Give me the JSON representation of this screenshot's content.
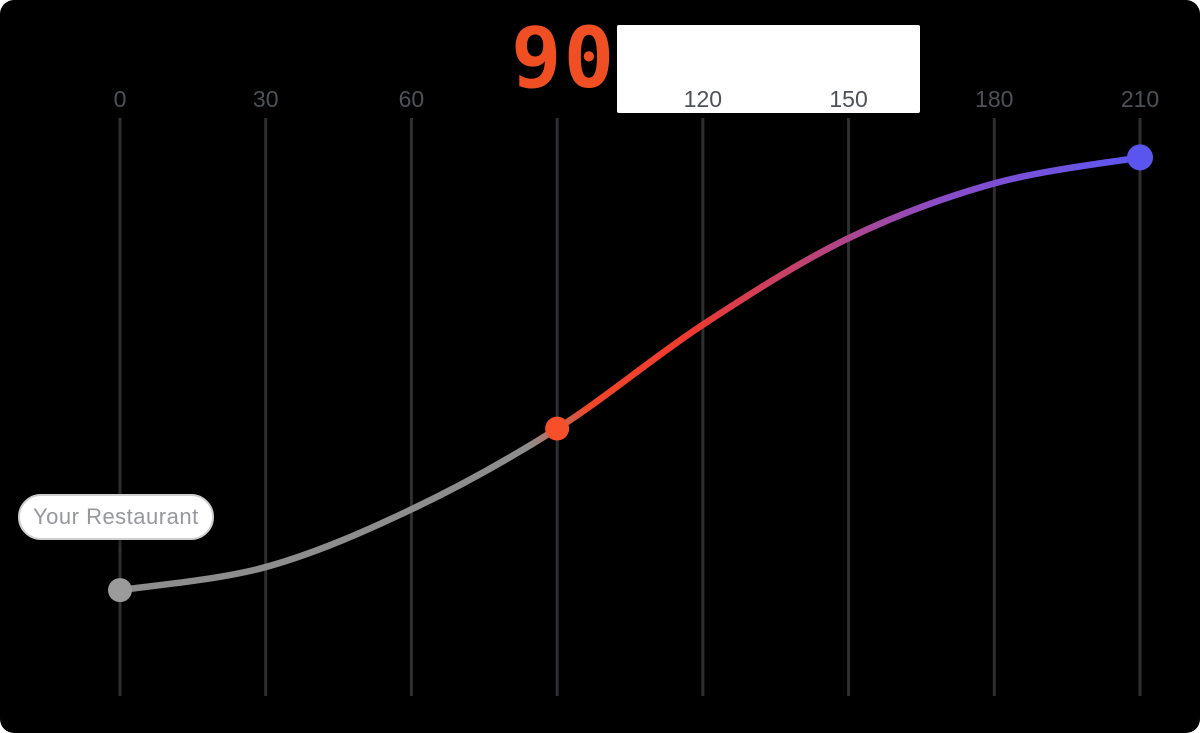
{
  "chart_data": {
    "type": "line",
    "title": "",
    "xlabel": "",
    "ylabel": "",
    "x_axis": {
      "min": 0,
      "max": 210,
      "tick_interval": 30,
      "ticks": [
        0,
        30,
        60,
        90,
        120,
        150,
        180,
        210
      ],
      "position": "top"
    },
    "ylim": [
      0,
      1
    ],
    "y_axis_labels": "none",
    "grid": {
      "vertical": true,
      "horizontal": false,
      "color": "#2e2f31"
    },
    "highlight": {
      "tick": 90,
      "value": "90",
      "color": "#F04F23"
    },
    "annotation": {
      "label": "Your Restaurant"
    },
    "series": [
      {
        "name": "restaurant-growth-curve",
        "points": [
          {
            "x": 0,
            "y": 0.18
          },
          {
            "x": 30,
            "y": 0.22
          },
          {
            "x": 60,
            "y": 0.32
          },
          {
            "x": 90,
            "y": 0.46
          },
          {
            "x": 120,
            "y": 0.64
          },
          {
            "x": 150,
            "y": 0.79
          },
          {
            "x": 180,
            "y": 0.885
          },
          {
            "x": 210,
            "y": 0.93
          }
        ],
        "gradient_stops": [
          {
            "offset": 0,
            "color": "#8d8d8d"
          },
          {
            "offset": 0.4,
            "color": "#8d8d8d"
          },
          {
            "offset": 0.46,
            "color": "#f1472a"
          },
          {
            "offset": 0.56,
            "color": "#ee3a30"
          },
          {
            "offset": 0.68,
            "color": "#bb4377"
          },
          {
            "offset": 0.8,
            "color": "#8c4cc6"
          },
          {
            "offset": 1,
            "color": "#5b57f2"
          }
        ],
        "markers": [
          {
            "x": 0,
            "y": 0.18,
            "color": "#9b9b9b",
            "radius": 12,
            "name": "start-point"
          },
          {
            "x": 90,
            "y": 0.46,
            "color": "#f6502a",
            "radius": 12,
            "name": "mid-point"
          },
          {
            "x": 210,
            "y": 0.93,
            "color": "#5a55ef",
            "radius": 13,
            "name": "end-point"
          }
        ]
      }
    ]
  },
  "colors": {
    "background": "#000000",
    "tick_label": "#4e5156",
    "value_box": "#ffffff",
    "pill_background": "#ffffff",
    "pill_text": "#96989c",
    "pill_border": "#cfcfcf"
  }
}
